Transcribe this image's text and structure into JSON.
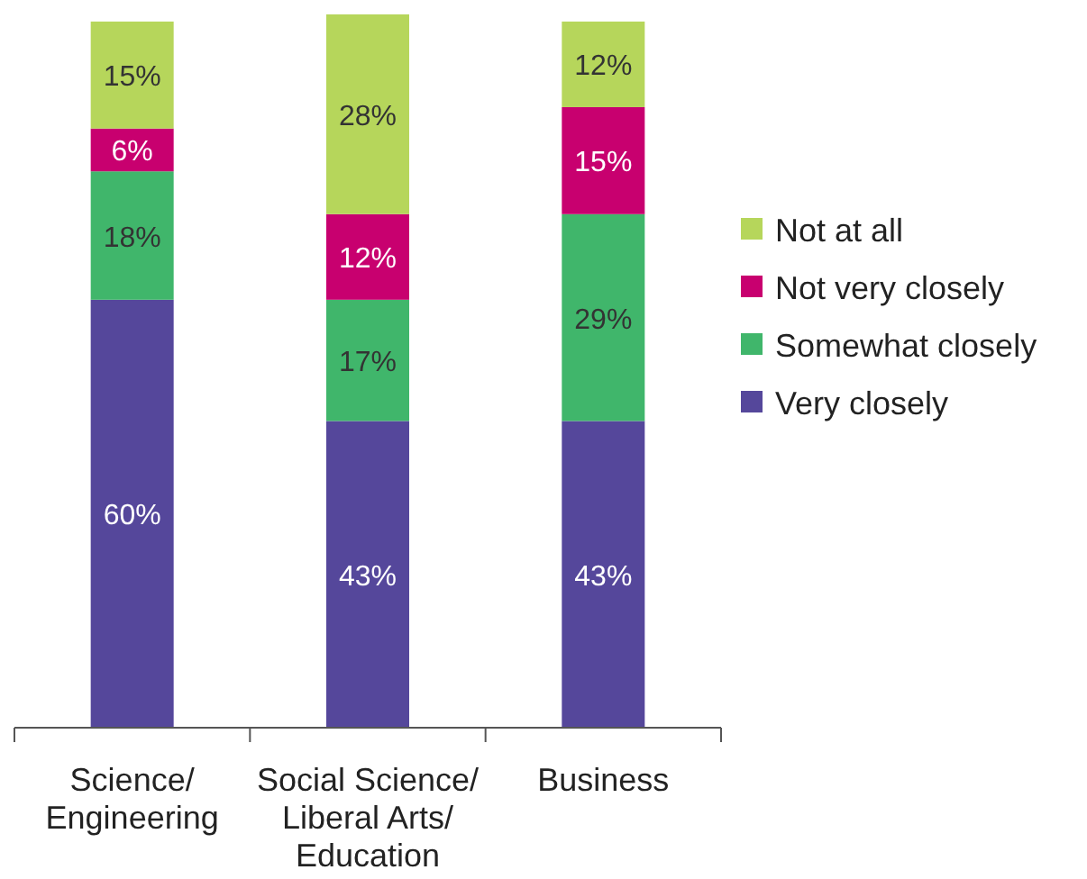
{
  "chart_data": {
    "type": "bar",
    "stacked": true,
    "legend": "right",
    "categories": [
      "Science/Engineering",
      "Social Science/Liberal Arts/Education",
      "Business"
    ],
    "series": [
      {
        "name": "Very closely",
        "color": "#55479b",
        "values": [
          60,
          43,
          43
        ],
        "value_labels": [
          "60%",
          "43%",
          "43%"
        ]
      },
      {
        "name": "Somewhat closely",
        "color": "#40b66b",
        "values": [
          18,
          17,
          29
        ],
        "value_labels": [
          "18%",
          "17%",
          "29%"
        ]
      },
      {
        "name": "Not very closely",
        "color": "#c8006f",
        "values": [
          6,
          12,
          15
        ],
        "value_labels": [
          "6%",
          "12%",
          "15%"
        ]
      },
      {
        "name": "Not at all",
        "color": "#b6d65b",
        "values": [
          15,
          28,
          12
        ],
        "value_labels": [
          "15%",
          "28%",
          "12%"
        ]
      }
    ]
  }
}
